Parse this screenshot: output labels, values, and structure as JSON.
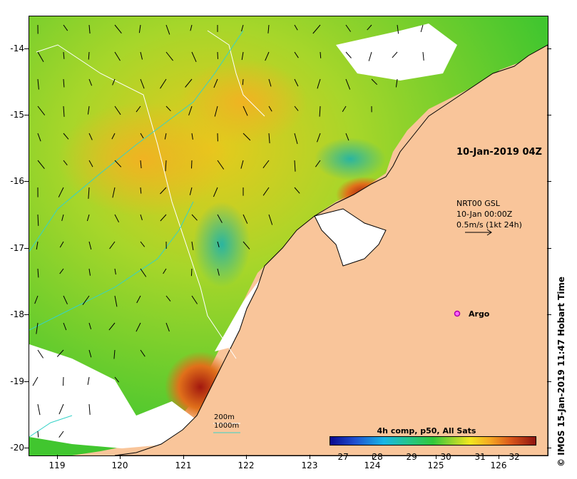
{
  "map": {
    "date_stamp": "10-Jan-2019 04Z",
    "current_legend": {
      "line1": "NRT00 GSL",
      "line2": "10-Jan 00:00Z",
      "line3": "0.5m/s (1kt 24h)"
    },
    "argo_label": "Argo",
    "contour_legend": {
      "c200": "200m",
      "c1000": "1000m"
    },
    "lat_labels": [
      "-14",
      "-15",
      "-16",
      "-17",
      "-18",
      "-19",
      "-20"
    ],
    "lon_labels": [
      "119",
      "120",
      "121",
      "122",
      "123",
      "124",
      "125",
      "126"
    ],
    "colorbar": {
      "title": "4h comp, p50, All Sats",
      "ticks": [
        "27",
        "28",
        "29",
        "30",
        "31",
        "32"
      ],
      "range": [
        26.6,
        32.6
      ]
    },
    "credit": "© IMOS 15-Jan-2019 11:47 Hobart Time",
    "colors": {
      "land": "#f9c59a",
      "coast": "#000000",
      "contour200": "#ffffff",
      "contour1000": "#36d2c8",
      "argo": "#cc22cc"
    }
  }
}
